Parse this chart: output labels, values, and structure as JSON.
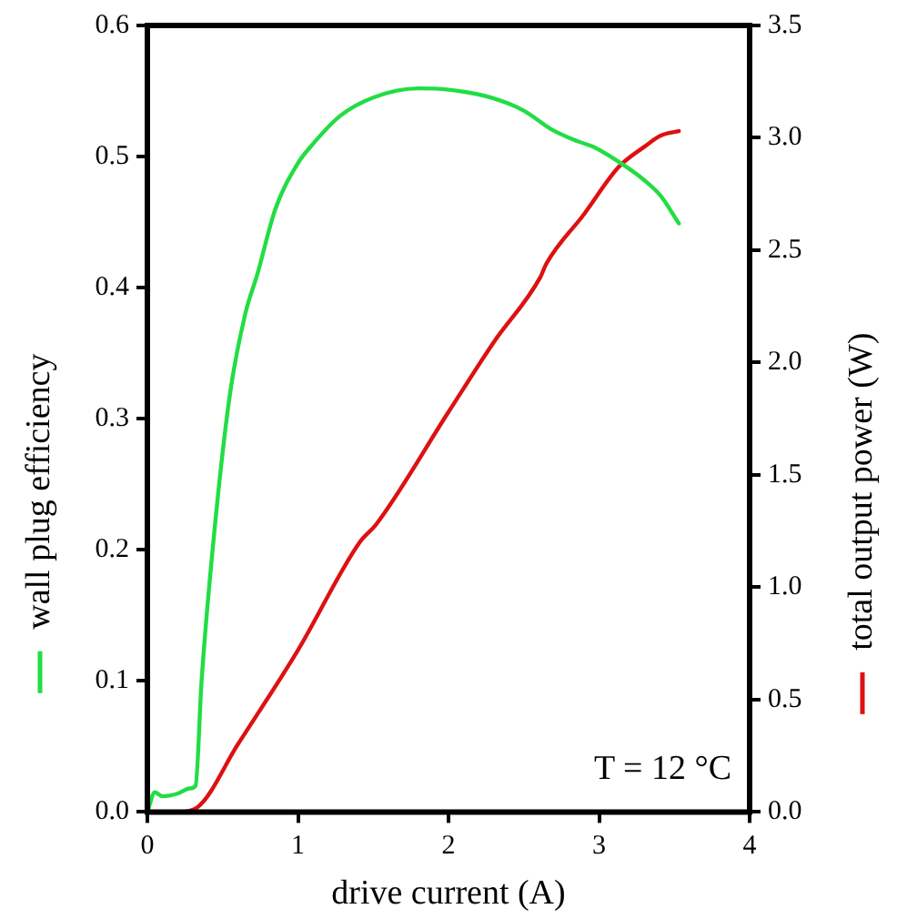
{
  "chart_data": {
    "type": "line",
    "xlabel": "drive current (A)",
    "ylabel": "wall plug efficiency",
    "y2label": "total output power (W)",
    "xlim": [
      0,
      4
    ],
    "xticks": [
      0,
      1,
      2,
      3,
      4
    ],
    "ylim": [
      0,
      0.6
    ],
    "yticks": [
      {
        "value": 0,
        "label": "0.0"
      },
      0.1,
      0.2,
      0.3,
      0.4,
      0.5,
      0.6
    ],
    "y2lim": [
      0,
      3.5
    ],
    "y2ticks": [
      {
        "value": 0,
        "label": "0.0"
      },
      0.5,
      {
        "value": 1,
        "label": "1.0"
      },
      1.5,
      {
        "value": 2,
        "label": "2.0"
      },
      2.5,
      {
        "value": 3,
        "label": "3.0"
      },
      3.5
    ],
    "grid": false,
    "legend": false,
    "marker": "none",
    "line_style": "solid",
    "annotations": [
      "T = 12 °C"
    ],
    "series": [
      {
        "color": "#22dd44",
        "x": [
          0,
          0.05,
          0.1,
          0.2,
          0.28,
          0.32,
          0.36,
          0.45,
          0.55,
          0.65,
          0.73,
          0.85,
          1.0,
          1.08,
          1.28,
          1.5,
          1.8,
          2.0,
          2.28,
          2.5,
          2.68,
          2.85,
          2.97,
          3.17,
          3.3,
          3.41,
          3.53
        ],
        "values": [
          0,
          0.015,
          0.012,
          0.014,
          0.018,
          0.02,
          0.1,
          0.22,
          0.32,
          0.38,
          0.41,
          0.46,
          0.495,
          0.507,
          0.531,
          0.545,
          0.552,
          0.551,
          0.545,
          0.535,
          0.521,
          0.512,
          0.507,
          0.493,
          0.482,
          0.47,
          0.449
        ]
      },
      {
        "color": "#dd1111",
        "axis": "y2",
        "x": [
          0,
          0.2,
          0.33,
          0.6,
          1.0,
          1.41,
          1.52,
          2.0,
          2.3,
          2.61,
          2.65,
          2.9,
          3.13,
          3.3,
          3.41,
          3.53
        ],
        "values": [
          0,
          0,
          0.02,
          0.3,
          0.72,
          1.2,
          1.28,
          1.78,
          2.09,
          2.38,
          2.44,
          2.66,
          2.87,
          2.96,
          3.01,
          3.03
        ]
      }
    ]
  }
}
